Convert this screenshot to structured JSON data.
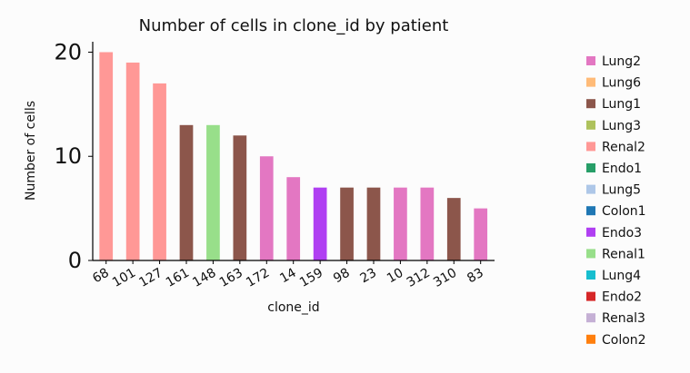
{
  "chart_data": {
    "type": "bar",
    "title": "Number of cells in clone_id by patient",
    "xlabel": "clone_id",
    "ylabel": "Number of cells",
    "ylim": [
      0,
      21
    ],
    "yticks": [
      0,
      10,
      20
    ],
    "categories": [
      "68",
      "101",
      "127",
      "161",
      "148",
      "163",
      "172",
      "14",
      "159",
      "98",
      "23",
      "10",
      "312",
      "310",
      "83"
    ],
    "values": [
      20,
      19,
      17,
      13,
      13,
      12,
      10,
      8,
      7,
      7,
      7,
      7,
      7,
      6,
      5
    ],
    "patients": [
      "Renal2",
      "Renal2",
      "Renal2",
      "Lung1",
      "Renal1",
      "Lung1",
      "Lung2",
      "Lung2",
      "Endo3",
      "Lung1",
      "Lung1",
      "Lung2",
      "Lung2",
      "Lung1",
      "Lung2"
    ],
    "legend_position": "right",
    "legend": [
      {
        "label": "Lung2",
        "color": "#e377c2"
      },
      {
        "label": "Lung6",
        "color": "#ffbb78"
      },
      {
        "label": "Lung1",
        "color": "#8c564b"
      },
      {
        "label": "Lung3",
        "color": "#aec25c"
      },
      {
        "label": "Renal2",
        "color": "#ff9896"
      },
      {
        "label": "Endo1",
        "color": "#279e68"
      },
      {
        "label": "Lung5",
        "color": "#aec7e8"
      },
      {
        "label": "Colon1",
        "color": "#1f77b4"
      },
      {
        "label": "Endo3",
        "color": "#b03ff2"
      },
      {
        "label": "Renal1",
        "color": "#98df8a"
      },
      {
        "label": "Lung4",
        "color": "#17becf"
      },
      {
        "label": "Endo2",
        "color": "#d62728"
      },
      {
        "label": "Renal3",
        "color": "#c5b0d5"
      },
      {
        "label": "Colon2",
        "color": "#ff7f0e"
      }
    ]
  }
}
